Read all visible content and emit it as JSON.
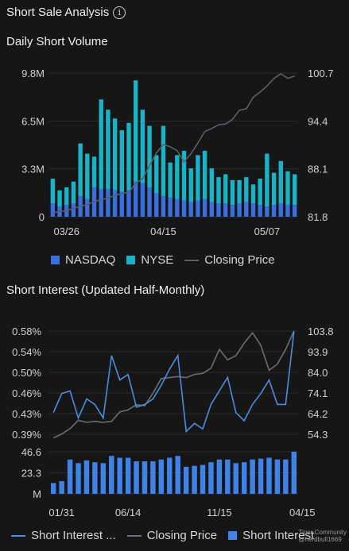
{
  "header": {
    "title": "Short Sale Analysis",
    "info_icon": "info-icon"
  },
  "colors": {
    "nasdaq": "#3b6fe0",
    "nyse": "#17b4c8",
    "price": "#5a5e66",
    "si_line": "#4a8de0",
    "si_bar": "#3f82e8",
    "si_price": "#6a6e74"
  },
  "section1": {
    "title": "Daily Short Volume"
  },
  "section2": {
    "title": "Short Interest (Updated Half-Monthly)"
  },
  "legend1": {
    "nasdaq": "NASDAQ",
    "nyse": "NYSE",
    "price": "Closing Price"
  },
  "legend2": {
    "si": "Short Interest ...",
    "price": "Closing Price",
    "bars": "Short Interest"
  },
  "watermark": {
    "line1": "Tiger Community",
    "line2": "@nerdbull1669"
  },
  "chart_data": [
    {
      "type": "bar",
      "title": "Daily Short Volume",
      "stacked": true,
      "x_tick_labels": [
        "03/26",
        "04/15",
        "05/07"
      ],
      "x_tick_index": [
        2,
        16,
        31
      ],
      "y_left_ticks": [
        "9.8M",
        "6.5M",
        "3.3M",
        "0"
      ],
      "y_left_range": [
        0,
        9.8
      ],
      "y_right_ticks": [
        "100.7",
        "94.4",
        "88.1",
        "81.8"
      ],
      "y_right_range": [
        81.8,
        100.7
      ],
      "series": [
        {
          "name": "NASDAQ",
          "values": [
            0.9,
            0.7,
            0.8,
            0.9,
            1.4,
            1.2,
            2.0,
            1.9,
            1.9,
            1.8,
            1.7,
            1.8,
            2.4,
            2.3,
            2.0,
            1.6,
            1.4,
            1.3,
            1.2,
            1.1,
            1.0,
            1.1,
            1.2,
            1.0,
            0.9,
            0.9,
            0.8,
            0.9,
            1.0,
            0.9,
            0.8,
            0.7,
            0.8,
            0.9,
            0.8,
            0.8
          ]
        },
        {
          "name": "NYSE",
          "values": [
            1.7,
            1.1,
            1.2,
            1.5,
            3.6,
            3.1,
            2.1,
            6.1,
            5.4,
            4.9,
            4.2,
            4.6,
            6.9,
            5.0,
            4.2,
            2.6,
            4.8,
            2.4,
            3.0,
            3.4,
            2.3,
            3.1,
            3.3,
            2.3,
            1.8,
            2.0,
            1.7,
            1.6,
            1.7,
            1.3,
            1.8,
            3.6,
            2.2,
            2.9,
            2.3,
            2.1
          ]
        },
        {
          "name": "Closing Price",
          "axis": "right",
          "values": [
            82.3,
            82.5,
            82.6,
            82.9,
            83.2,
            83.4,
            83.8,
            84.0,
            84.3,
            84.6,
            84.9,
            85.0,
            86.2,
            86.8,
            88.5,
            90.2,
            91.3,
            91.0,
            90.5,
            89.0,
            90.1,
            91.5,
            93.0,
            93.4,
            93.9,
            94.0,
            94.6,
            95.8,
            96.0,
            97.5,
            98.2,
            99.0,
            100.0,
            100.6,
            100.0,
            100.3
          ]
        }
      ],
      "legend_position": "bottom"
    },
    {
      "type": "line",
      "title": "Short Interest (Updated Half-Monthly)",
      "x_tick_labels": [
        "01/31",
        "06/14",
        "11/15",
        "04/15"
      ],
      "x_tick_index": [
        1,
        9,
        20,
        30
      ],
      "y_left_ticks": [
        "0.58%",
        "0.54%",
        "0.50%",
        "0.46%",
        "0.43%",
        "0.39%"
      ],
      "y_left_range": [
        0.39,
        0.58
      ],
      "y_right_ticks": [
        "103.8",
        "93.9",
        "84.0",
        "74.1",
        "64.2",
        "54.3"
      ],
      "y_right_range": [
        54.3,
        103.8
      ],
      "bar_ticks": [
        "46.6",
        "23.3",
        "M"
      ],
      "bar_range": [
        0,
        46.6
      ],
      "series": [
        {
          "name": "Short Interest ...",
          "axis": "left",
          "values": [
            0.43,
            0.465,
            0.47,
            0.42,
            0.455,
            0.445,
            0.42,
            0.535,
            0.49,
            0.5,
            0.44,
            0.445,
            0.455,
            0.48,
            0.51,
            0.535,
            0.395,
            0.41,
            0.4,
            0.445,
            0.47,
            0.495,
            0.43,
            0.415,
            0.445,
            0.465,
            0.49,
            0.445,
            0.445,
            0.58
          ]
        },
        {
          "name": "Closing Price",
          "axis": "right",
          "values": [
            52.5,
            54.5,
            57.0,
            61.0,
            60.0,
            60.5,
            60.0,
            60.5,
            65.0,
            66.0,
            68.5,
            68.0,
            74.0,
            81.0,
            81.5,
            82.0,
            81.5,
            83.0,
            83.5,
            86.0,
            95.0,
            90.0,
            92.0,
            98.0,
            103.0,
            97.0,
            85.0,
            88.0,
            95.0,
            103.8
          ]
        },
        {
          "name": "Short Interest",
          "type": "bar",
          "values": [
            12,
            14,
            38,
            34,
            37,
            35,
            34,
            42,
            40,
            40,
            36,
            36,
            36,
            38,
            40,
            42,
            30,
            31,
            32,
            35,
            38,
            38,
            34,
            35,
            38,
            39,
            40,
            38,
            38,
            46.6
          ]
        }
      ],
      "legend_position": "bottom"
    }
  ]
}
